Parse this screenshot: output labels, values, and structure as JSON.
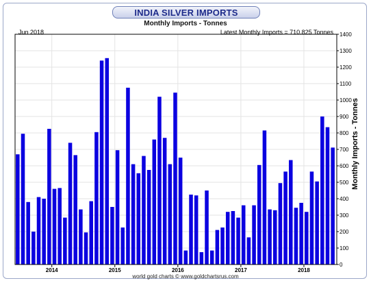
{
  "title": "INDIA SILVER IMPORTS",
  "subtitle": "Monthly Imports - Tonnes",
  "date_label": "Jun 2018",
  "latest_label": "Latest Monthly Imports = 710.825 Tonnes",
  "footer": "world gold charts © www.goldchartsrus.com",
  "colors": {
    "bar": "#0b00e0",
    "title": "#1c2a8a"
  },
  "chart_data": {
    "type": "bar",
    "title": "INDIA SILVER IMPORTS",
    "subtitle": "Monthly Imports - Tonnes",
    "ylabel": "Monthly Imports - Tonnes",
    "xlabel": "",
    "ylim": [
      0,
      1400
    ],
    "yticks": [
      0,
      100,
      200,
      300,
      400,
      500,
      600,
      700,
      800,
      900,
      1000,
      1100,
      1200,
      1300,
      1400
    ],
    "xtick_labels": [
      {
        "label": "2014",
        "index": 7
      },
      {
        "label": "2015",
        "index": 19
      },
      {
        "label": "2016",
        "index": 31
      },
      {
        "label": "2017",
        "index": 43
      },
      {
        "label": "2018",
        "index": 55
      }
    ],
    "grid": true,
    "x_start": "Jun 2013",
    "x_end": "Jun 2018",
    "values": [
      670,
      795,
      380,
      200,
      410,
      400,
      825,
      460,
      465,
      285,
      740,
      665,
      335,
      195,
      385,
      805,
      1240,
      1255,
      350,
      695,
      225,
      1075,
      610,
      555,
      660,
      575,
      760,
      1020,
      770,
      610,
      1045,
      650,
      85,
      425,
      420,
      75,
      450,
      85,
      210,
      225,
      320,
      325,
      285,
      360,
      165,
      360,
      605,
      815,
      335,
      330,
      495,
      565,
      635,
      345,
      375,
      320,
      565,
      505,
      900,
      835,
      711
    ]
  }
}
